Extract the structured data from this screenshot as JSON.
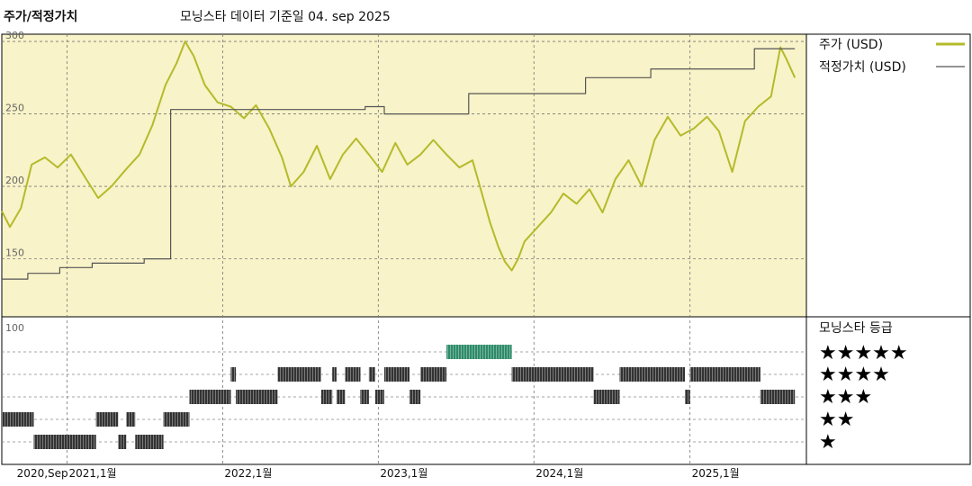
{
  "header": {
    "title": "주가/적정가치",
    "subtitle": "모닝스타 데이터 기준일 04. sep 2025"
  },
  "colors": {
    "price": "#b5ba2b",
    "fair_value": "#555555",
    "rating_bars": "#333333",
    "rating_top": "#2e8b6a",
    "upper_background": "#f8f3c8"
  },
  "chart_data": [
    {
      "type": "line",
      "title": "주가/적정가치",
      "subtitle": "모닝스타 데이터 기준일 04. sep 2025",
      "x_range": [
        "2020-08-01",
        "2025-10-01"
      ],
      "ylim": [
        110,
        305
      ],
      "y_ticks": [
        150,
        200,
        250,
        300
      ],
      "x_tick_labels": [
        "2020,Sep",
        "2021,1월",
        "2022,1월",
        "2023,1월",
        "2024,1월",
        "2025,1월"
      ],
      "x_tick_dates": [
        "2020-09-01",
        "2021-01-01",
        "2022-01-01",
        "2023-01-01",
        "2024-01-01",
        "2025-01-01"
      ],
      "grid": true,
      "legend_position": "right",
      "series": [
        {
          "name": "주가 (USD)",
          "style": "price",
          "points": [
            [
              "2020-08-01",
              183
            ],
            [
              "2020-08-20",
              172
            ],
            [
              "2020-09-15",
              185
            ],
            [
              "2020-10-10",
              215
            ],
            [
              "2020-11-10",
              220
            ],
            [
              "2020-12-10",
              213
            ],
            [
              "2021-01-10",
              222
            ],
            [
              "2021-02-15",
              205
            ],
            [
              "2021-03-15",
              192
            ],
            [
              "2021-04-15",
              200
            ],
            [
              "2021-05-20",
              212
            ],
            [
              "2021-06-20",
              222
            ],
            [
              "2021-07-20",
              242
            ],
            [
              "2021-08-20",
              270
            ],
            [
              "2021-09-15",
              285
            ],
            [
              "2021-10-05",
              300
            ],
            [
              "2021-10-25",
              290
            ],
            [
              "2021-11-20",
              270
            ],
            [
              "2021-12-20",
              258
            ],
            [
              "2022-01-20",
              255
            ],
            [
              "2022-02-20",
              247
            ],
            [
              "2022-03-20",
              256
            ],
            [
              "2022-04-20",
              240
            ],
            [
              "2022-05-20",
              220
            ],
            [
              "2022-06-10",
              200
            ],
            [
              "2022-07-10",
              210
            ],
            [
              "2022-08-10",
              228
            ],
            [
              "2022-09-10",
              205
            ],
            [
              "2022-10-10",
              222
            ],
            [
              "2022-11-10",
              233
            ],
            [
              "2022-12-10",
              222
            ],
            [
              "2023-01-10",
              210
            ],
            [
              "2023-02-10",
              230
            ],
            [
              "2023-03-10",
              215
            ],
            [
              "2023-04-10",
              222
            ],
            [
              "2023-05-10",
              232
            ],
            [
              "2023-06-10",
              222
            ],
            [
              "2023-07-10",
              213
            ],
            [
              "2023-08-10",
              218
            ],
            [
              "2023-09-01",
              195
            ],
            [
              "2023-09-20",
              175
            ],
            [
              "2023-10-10",
              158
            ],
            [
              "2023-10-25",
              148
            ],
            [
              "2023-11-10",
              142
            ],
            [
              "2023-11-25",
              150
            ],
            [
              "2023-12-10",
              162
            ],
            [
              "2024-01-10",
              172
            ],
            [
              "2024-02-10",
              182
            ],
            [
              "2024-03-10",
              195
            ],
            [
              "2024-04-10",
              188
            ],
            [
              "2024-05-10",
              198
            ],
            [
              "2024-06-10",
              182
            ],
            [
              "2024-07-10",
              205
            ],
            [
              "2024-08-10",
              218
            ],
            [
              "2024-09-10",
              200
            ],
            [
              "2024-10-10",
              232
            ],
            [
              "2024-11-10",
              248
            ],
            [
              "2024-12-10",
              235
            ],
            [
              "2025-01-10",
              240
            ],
            [
              "2025-02-10",
              248
            ],
            [
              "2025-03-10",
              238
            ],
            [
              "2025-04-10",
              210
            ],
            [
              "2025-05-10",
              245
            ],
            [
              "2025-06-10",
              255
            ],
            [
              "2025-07-10",
              262
            ],
            [
              "2025-08-01",
              296
            ],
            [
              "2025-08-15",
              288
            ],
            [
              "2025-09-04",
              275
            ]
          ]
        },
        {
          "name": "적정가치 (USD)",
          "style": "fair_value",
          "points": [
            [
              "2020-08-01",
              136
            ],
            [
              "2020-10-01",
              136
            ],
            [
              "2020-10-01",
              140
            ],
            [
              "2020-12-15",
              140
            ],
            [
              "2020-12-15",
              144
            ],
            [
              "2021-03-01",
              144
            ],
            [
              "2021-03-01",
              147
            ],
            [
              "2021-07-01",
              147
            ],
            [
              "2021-07-01",
              150
            ],
            [
              "2021-09-01",
              150
            ],
            [
              "2021-09-01",
              253
            ],
            [
              "2022-12-01",
              253
            ],
            [
              "2022-12-01",
              255
            ],
            [
              "2023-01-15",
              255
            ],
            [
              "2023-01-15",
              250
            ],
            [
              "2023-08-01",
              250
            ],
            [
              "2023-08-01",
              264
            ],
            [
              "2024-05-01",
              264
            ],
            [
              "2024-05-01",
              275
            ],
            [
              "2024-10-01",
              275
            ],
            [
              "2024-10-01",
              281
            ],
            [
              "2025-06-01",
              281
            ],
            [
              "2025-06-01",
              295
            ],
            [
              "2025-09-04",
              295
            ]
          ]
        }
      ]
    },
    {
      "type": "heatmap",
      "title": "모닝스타 등급",
      "y_top_label": "100",
      "levels": [
        "★★★★★",
        "★★★★",
        "★★★",
        "★★",
        "★"
      ],
      "periods": [
        {
          "stars": 2,
          "start": "2020-08-01",
          "end": "2020-10-15"
        },
        {
          "stars": 1,
          "start": "2020-10-15",
          "end": "2021-03-10"
        },
        {
          "stars": 2,
          "start": "2021-03-10",
          "end": "2021-05-01"
        },
        {
          "stars": 1,
          "start": "2021-05-01",
          "end": "2021-05-20"
        },
        {
          "stars": 2,
          "start": "2021-05-20",
          "end": "2021-06-10"
        },
        {
          "stars": 1,
          "start": "2021-06-10",
          "end": "2021-08-15"
        },
        {
          "stars": 2,
          "start": "2021-08-15",
          "end": "2021-10-15"
        },
        {
          "stars": 3,
          "start": "2021-10-15",
          "end": "2022-01-20"
        },
        {
          "stars": 4,
          "start": "2022-01-20",
          "end": "2022-02-01"
        },
        {
          "stars": 3,
          "start": "2022-02-01",
          "end": "2022-05-10"
        },
        {
          "stars": 4,
          "start": "2022-05-10",
          "end": "2022-08-20"
        },
        {
          "stars": 3,
          "start": "2022-08-20",
          "end": "2022-09-15"
        },
        {
          "stars": 4,
          "start": "2022-09-15",
          "end": "2022-09-25"
        },
        {
          "stars": 3,
          "start": "2022-09-25",
          "end": "2022-10-15"
        },
        {
          "stars": 4,
          "start": "2022-10-15",
          "end": "2022-11-20"
        },
        {
          "stars": 3,
          "start": "2022-11-20",
          "end": "2022-12-10"
        },
        {
          "stars": 4,
          "start": "2022-12-10",
          "end": "2022-12-25"
        },
        {
          "stars": 3,
          "start": "2022-12-25",
          "end": "2023-01-15"
        },
        {
          "stars": 4,
          "start": "2023-01-15",
          "end": "2023-03-15"
        },
        {
          "stars": 3,
          "start": "2023-03-15",
          "end": "2023-04-10"
        },
        {
          "stars": 4,
          "start": "2023-04-10",
          "end": "2023-06-10"
        },
        {
          "stars": 5,
          "start": "2023-06-10",
          "end": "2023-11-10"
        },
        {
          "stars": 4,
          "start": "2023-11-10",
          "end": "2024-05-20"
        },
        {
          "stars": 3,
          "start": "2024-05-20",
          "end": "2024-07-20"
        },
        {
          "stars": 4,
          "start": "2024-07-20",
          "end": "2024-12-20"
        },
        {
          "stars": 3,
          "start": "2024-12-20",
          "end": "2025-01-01"
        },
        {
          "stars": 4,
          "start": "2025-01-01",
          "end": "2025-06-15"
        },
        {
          "stars": 3,
          "start": "2025-06-15",
          "end": "2025-09-04"
        }
      ]
    }
  ]
}
